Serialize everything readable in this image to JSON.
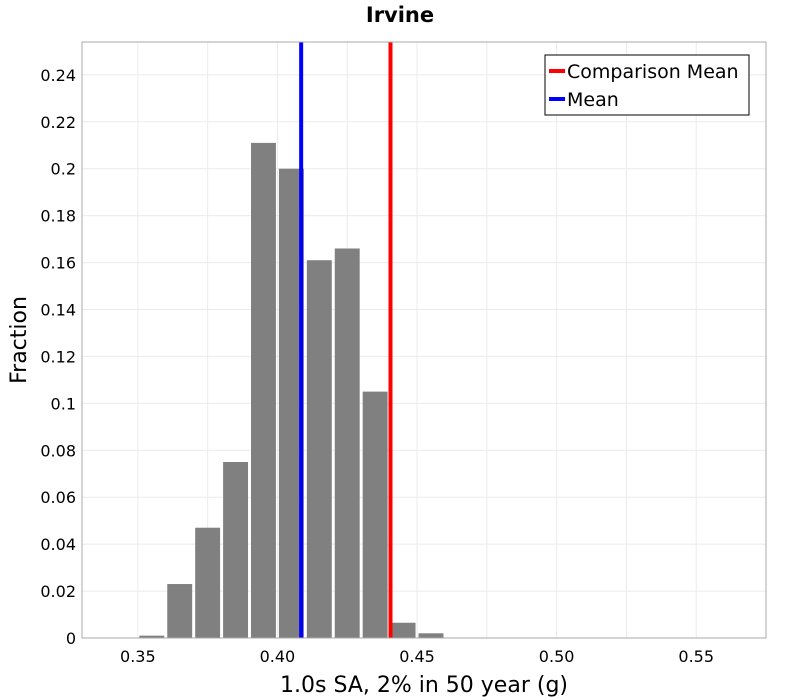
{
  "chart_data": {
    "type": "bar",
    "title": "Irvine",
    "xlabel": "1.0s SA, 2% in 50 year (g)",
    "ylabel": "Fraction",
    "xlim": [
      0.33,
      0.575
    ],
    "ylim": [
      0,
      0.254
    ],
    "grid": true,
    "x_ticks": [
      0.35,
      0.4,
      0.45,
      0.5,
      0.55
    ],
    "x_tick_labels": [
      "0.35",
      "0.40",
      "0.45",
      "0.50",
      "0.55"
    ],
    "y_ticks": [
      0,
      0.02,
      0.04,
      0.06,
      0.08,
      0.1,
      0.12,
      0.14,
      0.16,
      0.18,
      0.2,
      0.22,
      0.24
    ],
    "y_tick_labels": [
      "0",
      "0.02",
      "0.04",
      "0.06",
      "0.08",
      "0.1",
      "0.12",
      "0.14",
      "0.16",
      "0.18",
      "0.2",
      "0.22",
      "0.24"
    ],
    "bin_width": 0.01,
    "bins": [
      {
        "x": 0.355,
        "value": 0.001
      },
      {
        "x": 0.365,
        "value": 0.023
      },
      {
        "x": 0.375,
        "value": 0.047
      },
      {
        "x": 0.385,
        "value": 0.075
      },
      {
        "x": 0.395,
        "value": 0.211
      },
      {
        "x": 0.405,
        "value": 0.2
      },
      {
        "x": 0.415,
        "value": 0.161
      },
      {
        "x": 0.425,
        "value": 0.166
      },
      {
        "x": 0.435,
        "value": 0.105
      },
      {
        "x": 0.445,
        "value": 0.0065
      },
      {
        "x": 0.455,
        "value": 0.002
      }
    ],
    "bar_color": "#808080",
    "lines": [
      {
        "name": "Comparison Mean",
        "x": 0.4405,
        "color": "#ff0000"
      },
      {
        "name": "Mean",
        "x": 0.4085,
        "color": "#0000ff"
      }
    ],
    "legend_position": "top-right"
  }
}
